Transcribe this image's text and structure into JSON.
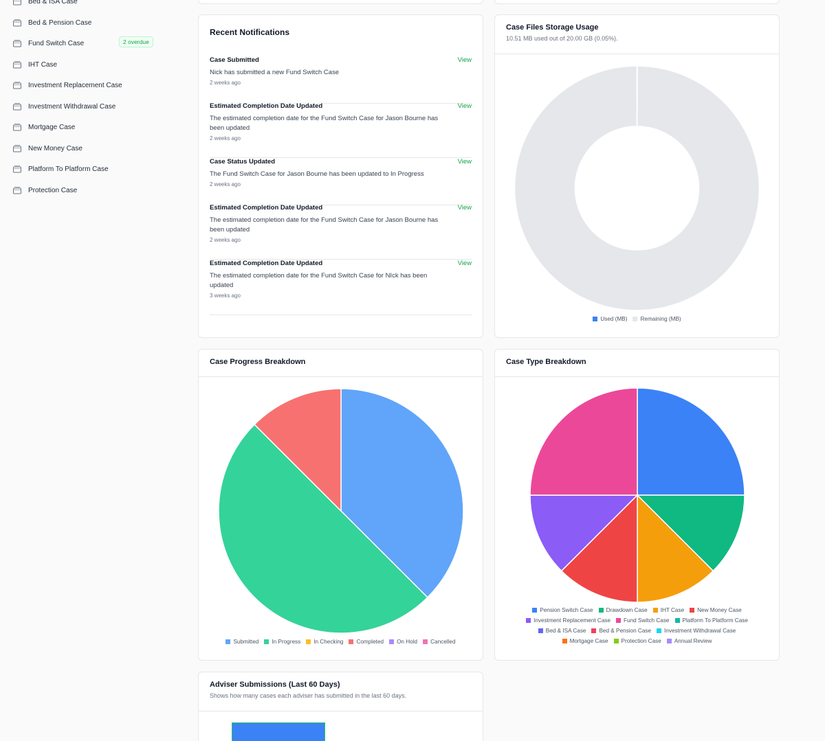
{
  "sidebar": {
    "items": [
      {
        "label": "Bed & ISA Case"
      },
      {
        "label": "Bed & Pension Case"
      },
      {
        "label": "Fund Switch Case",
        "badge": "2 overdue"
      },
      {
        "label": "IHT Case"
      },
      {
        "label": "Investment Replacement Case"
      },
      {
        "label": "Investment Withdrawal Case"
      },
      {
        "label": "Mortgage Case"
      },
      {
        "label": "New Money Case"
      },
      {
        "label": "Platform To Platform Case"
      },
      {
        "label": "Protection Case"
      }
    ]
  },
  "notifications": {
    "title": "Recent Notifications",
    "view_label": "View",
    "items": [
      {
        "title": "Case Submitted",
        "body": "Nick has submitted a new Fund Switch Case",
        "time": "2 weeks ago"
      },
      {
        "title": "Estimated Completion Date Updated",
        "body": "The estimated completion date for the Fund Switch Case for Jason Bourne has been updated",
        "time": "2 weeks ago"
      },
      {
        "title": "Case Status Updated",
        "body": "The Fund Switch Case for Jason Bourne has been updated to In Progress",
        "time": "2 weeks ago"
      },
      {
        "title": "Estimated Completion Date Updated",
        "body": "The estimated completion date for the Fund Switch Case for Jason Bourne has been updated",
        "time": "2 weeks ago"
      },
      {
        "title": "Estimated Completion Date Updated",
        "body": "The estimated completion date for the Fund Switch Case for NIck has been updated",
        "time": "3 weeks ago"
      }
    ]
  },
  "storage": {
    "title": "Case Files Storage Usage",
    "subtitle": "10.51 MB used out of 20.00 GB (0.05%)."
  },
  "progress": {
    "title": "Case Progress Breakdown"
  },
  "casetype": {
    "title": "Case Type Breakdown"
  },
  "adviser": {
    "title": "Adviser Submissions (Last 60 Days)",
    "subtitle": "Shows how many cases each adviser has submitted in the last 60 days."
  },
  "chart_data": [
    {
      "type": "pie",
      "variant": "doughnut",
      "categories": [
        "Used (MB)",
        "Remaining (MB)"
      ],
      "values": [
        10.51,
        20469.49
      ],
      "colors": [
        "#3b82f6",
        "#e5e7eb"
      ],
      "legend": "bottom"
    },
    {
      "type": "pie",
      "categories": [
        "Submitted",
        "In Progress",
        "In Checking",
        "Completed",
        "On Hold",
        "Cancelled"
      ],
      "values": [
        3,
        4,
        0,
        1,
        0,
        0
      ],
      "colors": [
        "#60a5fa",
        "#34d399",
        "#fbbf24",
        "#f87171",
        "#a78bfa",
        "#f472b6"
      ],
      "legend": "bottom"
    },
    {
      "type": "pie",
      "categories": [
        "Pension Switch Case",
        "Drawdown Case",
        "IHT Case",
        "New Money Case",
        "Investment Replacement Case",
        "Fund Switch Case",
        "Platform To Platform Case",
        "Bed & ISA Case",
        "Bed & Pension Case",
        "Investment Withdrawal Case",
        "Mortgage Case",
        "Protection Case",
        "Annual Review"
      ],
      "values": [
        2,
        1,
        1,
        1,
        1,
        2,
        0,
        0,
        0,
        0,
        0,
        0,
        0
      ],
      "colors": [
        "#3b82f6",
        "#10b981",
        "#f59e0b",
        "#ef4444",
        "#8b5cf6",
        "#ec4899",
        "#14b8a6",
        "#6366f1",
        "#f43f5e",
        "#22d3ee",
        "#f97316",
        "#84cc16",
        "#a78bfa"
      ],
      "legend": "bottom"
    },
    {
      "type": "bar",
      "categories": [],
      "values": [],
      "colors": [
        "#3b82f6"
      ]
    }
  ]
}
